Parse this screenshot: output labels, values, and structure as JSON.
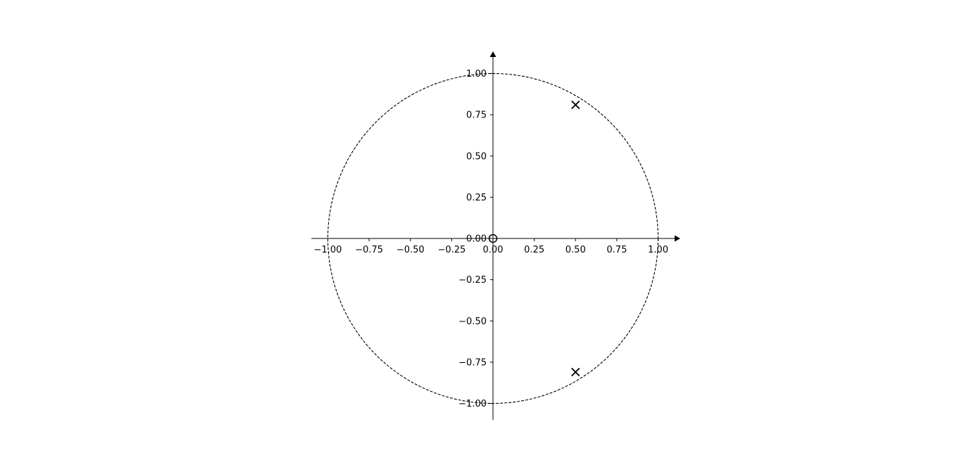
{
  "chart_data": {
    "type": "scatter",
    "title": "",
    "xlabel": "",
    "ylabel": "",
    "xlim": [
      -1.1,
      1.1
    ],
    "ylim": [
      -1.1,
      1.1
    ],
    "grid": false,
    "legend": "none",
    "x_ticks": [
      {
        "value": -1.0,
        "label": "−1.00"
      },
      {
        "value": -0.75,
        "label": "−0.75"
      },
      {
        "value": -0.5,
        "label": "−0.50"
      },
      {
        "value": -0.25,
        "label": "−0.25"
      },
      {
        "value": 0.0,
        "label": "0.00"
      },
      {
        "value": 0.25,
        "label": "0.25"
      },
      {
        "value": 0.5,
        "label": "0.50"
      },
      {
        "value": 0.75,
        "label": "0.75"
      },
      {
        "value": 1.0,
        "label": "1.00"
      }
    ],
    "y_ticks": [
      {
        "value": 1.0,
        "label": "1.00"
      },
      {
        "value": 0.75,
        "label": "0.75"
      },
      {
        "value": 0.5,
        "label": "0.50"
      },
      {
        "value": 0.25,
        "label": "0.25"
      },
      {
        "value": 0.0,
        "label": "0.00"
      },
      {
        "value": -0.25,
        "label": "−0.25"
      },
      {
        "value": -0.5,
        "label": "−0.50"
      },
      {
        "value": -0.75,
        "label": "−0.75"
      },
      {
        "value": -1.0,
        "label": "−1.00"
      }
    ],
    "unit_circle": {
      "radius": 1.0,
      "style": "dashed"
    },
    "series": [
      {
        "marker": "x",
        "points": [
          {
            "x": 0.5,
            "y": 0.81
          },
          {
            "x": 0.5,
            "y": -0.81
          }
        ]
      },
      {
        "marker": "o",
        "points": [
          {
            "x": 0.0,
            "y": 0.0
          }
        ]
      }
    ],
    "colors": {
      "axis": "#000000",
      "markers": "#000000",
      "circle": "#000000"
    }
  }
}
